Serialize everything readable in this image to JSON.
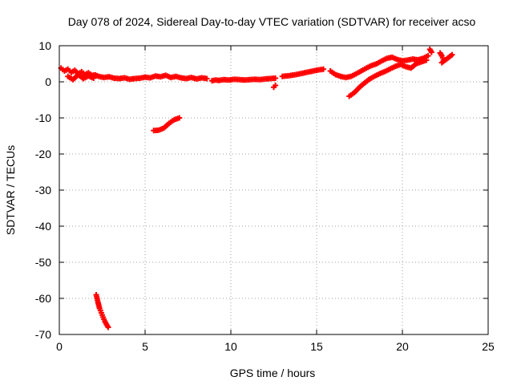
{
  "chart_data": {
    "type": "scatter",
    "title": "Day 078 of 2024, Sidereal Day-to-day VTEC variation (SDTVAR) for receiver acso",
    "xlabel": "GPS time / hours",
    "ylabel": "SDTVAR / TECUs",
    "xlim": [
      0,
      25
    ],
    "ylim": [
      -70,
      10
    ],
    "xticks": [
      0,
      5,
      10,
      15,
      20,
      25
    ],
    "yticks": [
      10,
      0,
      -10,
      -20,
      -30,
      -40,
      -50,
      -60,
      -70
    ],
    "grid": true,
    "marker": "+",
    "series": [
      {
        "name": "SDTVAR",
        "color": "#ff0000",
        "segments": [
          {
            "x": [
              0.1,
              0.3,
              0.5,
              0.7,
              0.9,
              1.1,
              1.3,
              1.5,
              1.7,
              1.9,
              2.1,
              2.3,
              2.6,
              2.9,
              3.2,
              3.5,
              3.8,
              4.1,
              4.4,
              4.7,
              5.0,
              5.3,
              5.6,
              5.9,
              6.2,
              6.5,
              6.8,
              7.1,
              7.4,
              7.7,
              8.0,
              8.3,
              8.6
            ],
            "y": [
              3.8,
              3.0,
              3.5,
              2.6,
              3.2,
              2.2,
              2.8,
              2.0,
              2.5,
              1.8,
              1.9,
              1.5,
              1.2,
              1.4,
              1.0,
              0.9,
              1.1,
              0.7,
              0.9,
              1.0,
              1.3,
              1.1,
              1.6,
              1.4,
              1.8,
              1.2,
              1.5,
              1.1,
              0.9,
              1.2,
              0.8,
              1.1,
              0.9
            ]
          },
          {
            "x": [
              0.5,
              0.8,
              1.1,
              1.4,
              1.7,
              2.0
            ],
            "y": [
              1.5,
              0.6,
              2.0,
              0.9,
              1.6,
              1.0
            ]
          },
          {
            "x": [
              8.9,
              9.1,
              9.3,
              9.6,
              9.9,
              10.2,
              10.5,
              10.8,
              11.1,
              11.4,
              11.7,
              12.0,
              12.3,
              12.6
            ],
            "y": [
              0.3,
              0.5,
              0.4,
              0.6,
              0.5,
              0.7,
              0.6,
              0.5,
              0.6,
              0.7,
              0.6,
              0.8,
              0.9,
              1.0
            ]
          },
          {
            "x": [
              12.5,
              12.6
            ],
            "y": [
              -1.5,
              -1.0
            ]
          },
          {
            "x": [
              13.0,
              13.4,
              13.8,
              14.2,
              14.6,
              15.0,
              15.4
            ],
            "y": [
              1.5,
              1.7,
              2.0,
              2.4,
              2.8,
              3.2,
              3.5
            ]
          },
          {
            "x": [
              15.8,
              16.1,
              16.4,
              16.7,
              17.0,
              17.3,
              17.6,
              17.9,
              18.2,
              18.5,
              18.8,
              19.1,
              19.4,
              19.7,
              20.0,
              20.3,
              20.6,
              20.9,
              21.2,
              21.5
            ],
            "y": [
              3.0,
              2.0,
              1.5,
              1.2,
              1.5,
              2.2,
              3.0,
              3.8,
              4.5,
              5.0,
              5.8,
              6.5,
              6.8,
              6.2,
              5.8,
              6.0,
              6.3,
              6.1,
              6.5,
              7.2
            ]
          },
          {
            "x": [
              16.9,
              17.2,
              17.5,
              17.8,
              18.1,
              18.4,
              18.7,
              19.0,
              19.3,
              19.6,
              19.9,
              20.2,
              20.5,
              20.8,
              21.1,
              21.4
            ],
            "y": [
              -4.0,
              -3.0,
              -1.5,
              -0.3,
              0.8,
              1.6,
              2.3,
              2.9,
              3.6,
              4.3,
              4.8,
              4.2,
              3.8,
              5.0,
              5.5,
              6.0
            ]
          },
          {
            "x": [
              21.6,
              21.7
            ],
            "y": [
              9.0,
              8.2
            ]
          },
          {
            "x": [
              22.2,
              22.3,
              22.4,
              22.3,
              22.9
            ],
            "y": [
              8.0,
              7.2,
              6.0,
              5.3,
              7.5
            ]
          },
          {
            "x": [
              5.5,
              5.8,
              6.1,
              6.4,
              6.7,
              7.0
            ],
            "y": [
              -13.5,
              -13.4,
              -12.8,
              -11.5,
              -10.5,
              -10.0
            ]
          },
          {
            "x": [
              2.15,
              2.25,
              2.35,
              2.45,
              2.55,
              2.65,
              2.75,
              2.85
            ],
            "y": [
              -59.0,
              -61.0,
              -62.8,
              -64.0,
              -65.2,
              -66.3,
              -67.2,
              -68.0
            ]
          }
        ]
      }
    ]
  }
}
